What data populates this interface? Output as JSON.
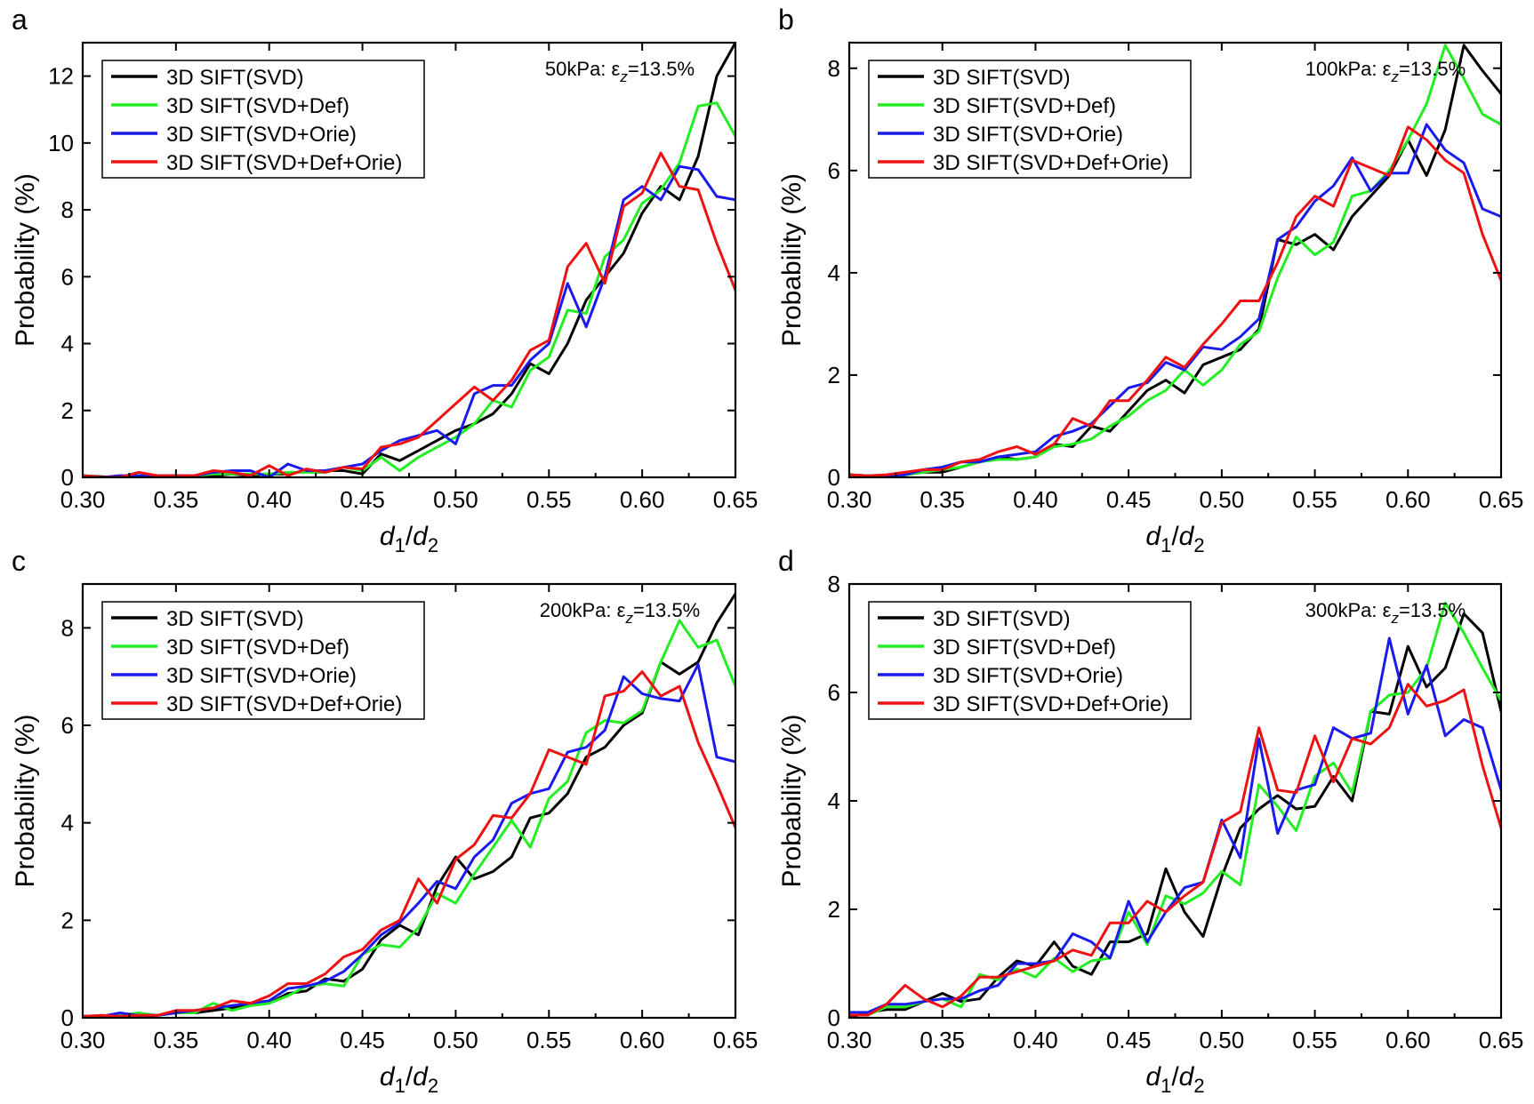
{
  "colors": {
    "3D SIFT(SVD)": "#000000",
    "3D SIFT(SVD+Def)": "#22ee22",
    "3D SIFT(SVD+Orie)": "#1a1aee",
    "3D SIFT(SVD+Def+Orie)": "#ee1111"
  },
  "chart_data": [
    {
      "panel": "a",
      "type": "line",
      "annotation": "50kPa:  εz=13.5%",
      "xlabel": "d1/d2",
      "ylabel": "Probability (%)",
      "xlim": [
        0.3,
        0.65
      ],
      "ylim": [
        0,
        13
      ],
      "xticks": [
        "0.30",
        "0.35",
        "0.40",
        "0.45",
        "0.50",
        "0.55",
        "0.60",
        "0.65"
      ],
      "yticks": [
        "0",
        "2",
        "4",
        "6",
        "8",
        "10",
        "12"
      ],
      "legend": "top-left",
      "x": [
        0.3,
        0.31,
        0.32,
        0.33,
        0.34,
        0.35,
        0.36,
        0.37,
        0.38,
        0.39,
        0.4,
        0.41,
        0.42,
        0.43,
        0.44,
        0.45,
        0.46,
        0.47,
        0.48,
        0.49,
        0.5,
        0.51,
        0.52,
        0.53,
        0.54,
        0.55,
        0.56,
        0.57,
        0.58,
        0.59,
        0.6,
        0.61,
        0.62,
        0.63,
        0.64,
        0.65
      ],
      "series": [
        {
          "name": "3D SIFT(SVD)",
          "values": [
            0.05,
            0.02,
            0.0,
            0.05,
            0.02,
            0.05,
            0.03,
            0.05,
            0.1,
            0.05,
            0.1,
            0.1,
            0.2,
            0.2,
            0.2,
            0.1,
            0.7,
            0.5,
            0.8,
            1.1,
            1.4,
            1.6,
            1.9,
            2.5,
            3.4,
            3.1,
            4.0,
            5.3,
            6.0,
            6.7,
            7.9,
            8.7,
            8.3,
            9.6,
            12.0,
            13.0
          ]
        },
        {
          "name": "3D SIFT(SVD+Def)",
          "values": [
            0.05,
            0.0,
            0.02,
            0.05,
            0.02,
            0.03,
            0.05,
            0.1,
            0.1,
            0.1,
            0.1,
            0.15,
            0.15,
            0.15,
            0.3,
            0.2,
            0.6,
            0.2,
            0.6,
            0.9,
            1.2,
            1.6,
            2.3,
            2.1,
            3.2,
            3.6,
            5.0,
            4.9,
            6.6,
            7.1,
            8.2,
            8.6,
            9.4,
            11.1,
            11.2,
            10.2
          ]
        },
        {
          "name": "3D SIFT(SVD+Orie)",
          "values": [
            0.05,
            0.0,
            0.05,
            0.05,
            0.05,
            0.05,
            0.05,
            0.15,
            0.2,
            0.2,
            0.0,
            0.4,
            0.2,
            0.2,
            0.3,
            0.4,
            0.8,
            1.1,
            1.25,
            1.4,
            1.0,
            2.5,
            2.75,
            2.75,
            3.5,
            4.0,
            5.8,
            4.5,
            6.0,
            8.3,
            8.7,
            8.3,
            9.3,
            9.2,
            8.4,
            8.3
          ]
        },
        {
          "name": "3D SIFT(SVD+Def+Orie)",
          "values": [
            0.05,
            0.0,
            0.0,
            0.15,
            0.05,
            0.05,
            0.05,
            0.2,
            0.15,
            0.05,
            0.35,
            0.05,
            0.25,
            0.15,
            0.3,
            0.25,
            0.9,
            1.0,
            1.2,
            1.7,
            2.2,
            2.7,
            2.3,
            2.9,
            3.8,
            4.1,
            6.3,
            7.0,
            5.8,
            8.1,
            8.5,
            9.7,
            8.7,
            8.6,
            7.0,
            5.6
          ]
        }
      ]
    },
    {
      "panel": "b",
      "type": "line",
      "annotation": "100kPa:  εz=13.5%",
      "xlabel": "d1/d2",
      "ylabel": "Probability (%)",
      "xlim": [
        0.3,
        0.65
      ],
      "ylim": [
        0,
        8.5
      ],
      "xticks": [
        "0.30",
        "0.35",
        "0.40",
        "0.45",
        "0.50",
        "0.55",
        "0.60",
        "0.65"
      ],
      "yticks": [
        "0",
        "2",
        "4",
        "6",
        "8"
      ],
      "legend": "top-left",
      "x": [
        0.3,
        0.31,
        0.32,
        0.33,
        0.34,
        0.35,
        0.36,
        0.37,
        0.38,
        0.39,
        0.4,
        0.41,
        0.42,
        0.43,
        0.44,
        0.45,
        0.46,
        0.47,
        0.48,
        0.49,
        0.5,
        0.51,
        0.52,
        0.53,
        0.54,
        0.55,
        0.56,
        0.57,
        0.58,
        0.59,
        0.6,
        0.61,
        0.62,
        0.63,
        0.64,
        0.65
      ],
      "series": [
        {
          "name": "3D SIFT(SVD)",
          "values": [
            0.05,
            0.03,
            0.0,
            0.05,
            0.1,
            0.1,
            0.2,
            0.3,
            0.4,
            0.35,
            0.4,
            0.65,
            0.6,
            1.0,
            0.9,
            1.3,
            1.7,
            1.9,
            1.65,
            2.2,
            2.35,
            2.5,
            2.9,
            4.65,
            4.55,
            4.75,
            4.45,
            5.1,
            5.5,
            5.9,
            6.6,
            5.9,
            6.8,
            8.45,
            7.95,
            7.5
          ]
        },
        {
          "name": "3D SIFT(SVD+Def)",
          "values": [
            0.05,
            0.03,
            0.02,
            0.05,
            0.1,
            0.15,
            0.2,
            0.3,
            0.35,
            0.35,
            0.4,
            0.6,
            0.65,
            0.75,
            1.0,
            1.2,
            1.5,
            1.7,
            2.1,
            1.8,
            2.1,
            2.6,
            2.85,
            3.9,
            4.7,
            4.35,
            4.6,
            5.5,
            5.6,
            6.0,
            6.6,
            7.3,
            8.45,
            7.8,
            7.1,
            6.9
          ]
        },
        {
          "name": "3D SIFT(SVD+Orie)",
          "values": [
            0.05,
            0.03,
            0.02,
            0.05,
            0.15,
            0.2,
            0.3,
            0.3,
            0.4,
            0.45,
            0.5,
            0.8,
            0.9,
            1.05,
            1.4,
            1.75,
            1.85,
            2.25,
            2.1,
            2.55,
            2.5,
            2.75,
            3.1,
            4.65,
            4.9,
            5.4,
            5.7,
            6.25,
            5.6,
            5.95,
            5.95,
            6.9,
            6.4,
            6.15,
            5.25,
            5.1
          ]
        },
        {
          "name": "3D SIFT(SVD+Def+Orie)",
          "values": [
            0.05,
            0.03,
            0.05,
            0.1,
            0.15,
            0.15,
            0.3,
            0.35,
            0.5,
            0.6,
            0.45,
            0.65,
            1.15,
            1.0,
            1.5,
            1.5,
            1.9,
            2.35,
            2.15,
            2.6,
            3.0,
            3.45,
            3.45,
            4.2,
            5.1,
            5.5,
            5.3,
            6.2,
            6.05,
            5.9,
            6.85,
            6.6,
            6.2,
            5.95,
            4.75,
            3.85
          ]
        }
      ]
    },
    {
      "panel": "c",
      "type": "line",
      "annotation": "200kPa:  εz=13.5%",
      "xlabel": "d1/d2",
      "ylabel": "Probability (%)",
      "xlim": [
        0.3,
        0.65
      ],
      "ylim": [
        0,
        8.9
      ],
      "xticks": [
        "0.30",
        "0.35",
        "0.40",
        "0.45",
        "0.50",
        "0.55",
        "0.60",
        "0.65"
      ],
      "yticks": [
        "0",
        "2",
        "4",
        "6",
        "8"
      ],
      "legend": "top-left",
      "x": [
        0.3,
        0.31,
        0.32,
        0.33,
        0.34,
        0.35,
        0.36,
        0.37,
        0.38,
        0.39,
        0.4,
        0.41,
        0.42,
        0.43,
        0.44,
        0.45,
        0.46,
        0.47,
        0.48,
        0.49,
        0.5,
        0.51,
        0.52,
        0.53,
        0.54,
        0.55,
        0.56,
        0.57,
        0.58,
        0.59,
        0.6,
        0.61,
        0.62,
        0.63,
        0.64,
        0.65
      ],
      "series": [
        {
          "name": "3D SIFT(SVD)",
          "values": [
            0.03,
            0.03,
            0.05,
            0.02,
            0.05,
            0.1,
            0.1,
            0.15,
            0.2,
            0.25,
            0.3,
            0.5,
            0.55,
            0.8,
            0.75,
            1.0,
            1.6,
            1.9,
            1.7,
            2.7,
            3.3,
            2.85,
            3.0,
            3.3,
            4.1,
            4.2,
            4.6,
            5.35,
            5.55,
            6.0,
            6.25,
            7.3,
            7.05,
            7.3,
            8.1,
            8.7
          ]
        },
        {
          "name": "3D SIFT(SVD+Def)",
          "values": [
            0.03,
            0.03,
            0.05,
            0.1,
            0.05,
            0.1,
            0.1,
            0.3,
            0.15,
            0.25,
            0.3,
            0.45,
            0.65,
            0.7,
            0.65,
            1.3,
            1.5,
            1.45,
            1.85,
            2.55,
            2.35,
            2.95,
            3.5,
            4.05,
            3.5,
            4.5,
            4.85,
            5.85,
            6.1,
            6.05,
            6.3,
            7.3,
            8.15,
            7.6,
            7.75,
            6.8
          ]
        },
        {
          "name": "3D SIFT(SVD+Orie)",
          "values": [
            0.03,
            0.03,
            0.1,
            0.05,
            0.05,
            0.1,
            0.15,
            0.2,
            0.25,
            0.3,
            0.35,
            0.6,
            0.65,
            0.75,
            0.95,
            1.3,
            1.7,
            1.95,
            2.35,
            2.8,
            2.65,
            3.3,
            3.65,
            4.4,
            4.6,
            4.7,
            5.45,
            5.55,
            5.9,
            7.0,
            6.65,
            6.55,
            6.5,
            7.25,
            5.35,
            5.25
          ]
        },
        {
          "name": "3D SIFT(SVD+Def+Orie)",
          "values": [
            0.03,
            0.05,
            0.03,
            0.05,
            0.05,
            0.15,
            0.15,
            0.2,
            0.35,
            0.3,
            0.45,
            0.7,
            0.7,
            0.9,
            1.25,
            1.4,
            1.8,
            2.0,
            2.85,
            2.35,
            3.25,
            3.55,
            4.15,
            4.1,
            4.6,
            5.5,
            5.35,
            5.2,
            6.6,
            6.7,
            7.1,
            6.6,
            6.8,
            5.65,
            4.8,
            3.9
          ]
        }
      ]
    },
    {
      "panel": "d",
      "type": "line",
      "annotation": "300kPa:  εz=13.5%",
      "xlabel": "d1/d2",
      "ylabel": "Probability (%)",
      "xlim": [
        0.3,
        0.65
      ],
      "ylim": [
        0,
        8
      ],
      "xticks": [
        "0.30",
        "0.35",
        "0.40",
        "0.45",
        "0.50",
        "0.55",
        "0.60",
        "0.65"
      ],
      "yticks": [
        "0",
        "2",
        "4",
        "6",
        "8"
      ],
      "legend": "top-left",
      "x": [
        0.3,
        0.31,
        0.32,
        0.33,
        0.34,
        0.35,
        0.36,
        0.37,
        0.38,
        0.39,
        0.4,
        0.41,
        0.42,
        0.43,
        0.44,
        0.45,
        0.46,
        0.47,
        0.48,
        0.49,
        0.5,
        0.51,
        0.52,
        0.53,
        0.54,
        0.55,
        0.56,
        0.57,
        0.58,
        0.59,
        0.6,
        0.61,
        0.62,
        0.63,
        0.64,
        0.65
      ],
      "series": [
        {
          "name": "3D SIFT(SVD)",
          "values": [
            0.0,
            0.1,
            0.15,
            0.15,
            0.3,
            0.45,
            0.3,
            0.35,
            0.75,
            1.05,
            0.95,
            1.4,
            0.95,
            0.8,
            1.4,
            1.4,
            1.55,
            2.75,
            1.95,
            1.5,
            2.6,
            3.5,
            3.85,
            4.1,
            3.85,
            3.9,
            4.45,
            4.0,
            5.65,
            5.6,
            6.85,
            6.1,
            6.45,
            7.45,
            7.1,
            5.65
          ]
        },
        {
          "name": "3D SIFT(SVD+Def)",
          "values": [
            0.05,
            0.05,
            0.2,
            0.2,
            0.3,
            0.35,
            0.2,
            0.8,
            0.7,
            0.9,
            0.75,
            1.1,
            0.85,
            1.05,
            1.1,
            1.95,
            1.35,
            2.25,
            2.1,
            2.3,
            2.7,
            2.45,
            4.3,
            3.9,
            3.45,
            4.45,
            4.7,
            4.15,
            5.65,
            5.95,
            6.0,
            6.45,
            7.65,
            7.1,
            6.45,
            5.85
          ]
        },
        {
          "name": "3D SIFT(SVD+Orie)",
          "values": [
            0.1,
            0.1,
            0.25,
            0.25,
            0.3,
            0.35,
            0.35,
            0.5,
            0.6,
            1.0,
            1.0,
            1.05,
            1.55,
            1.4,
            1.1,
            2.15,
            1.4,
            1.95,
            2.4,
            2.5,
            3.65,
            2.95,
            5.15,
            3.4,
            4.2,
            4.3,
            5.35,
            5.15,
            5.25,
            7.0,
            5.6,
            6.5,
            5.2,
            5.5,
            5.35,
            4.2
          ]
        },
        {
          "name": "3D SIFT(SVD+Def+Orie)",
          "values": [
            0.05,
            0.05,
            0.25,
            0.6,
            0.35,
            0.2,
            0.4,
            0.75,
            0.75,
            0.85,
            0.95,
            1.05,
            1.25,
            1.15,
            1.75,
            1.75,
            2.15,
            1.95,
            2.25,
            2.5,
            3.6,
            3.8,
            5.35,
            4.2,
            4.15,
            5.2,
            4.35,
            5.15,
            5.05,
            5.35,
            6.15,
            5.75,
            5.85,
            6.05,
            4.65,
            3.5
          ]
        }
      ]
    }
  ]
}
